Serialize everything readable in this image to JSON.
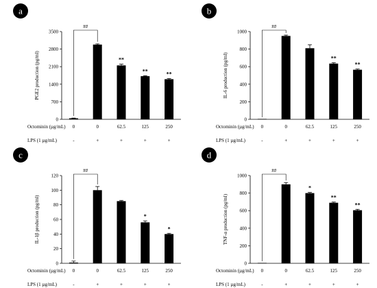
{
  "chart_data": [
    {
      "type": "bar",
      "panel_label": "a",
      "ylabel": "PGE2 production (pg/ml)",
      "ylim": [
        0,
        3500
      ],
      "yticks": [
        0,
        700,
        1400,
        2100,
        2800,
        3500
      ],
      "categories": [
        "0",
        "0",
        "62.5",
        "125",
        "250"
      ],
      "values": [
        40,
        2980,
        2150,
        1720,
        1600
      ],
      "errors": [
        10,
        30,
        50,
        20,
        25
      ],
      "significance": [
        "",
        "",
        "**",
        "**",
        "**"
      ],
      "comparison_label": "##",
      "treatment_label": "Octominin (µg/mL)",
      "lps_label": "LPS (1 µg/mL)",
      "lps": [
        "-",
        "+",
        "+",
        "+",
        "+"
      ],
      "grid": false
    },
    {
      "type": "bar",
      "panel_label": "b",
      "ylabel": "IL-6 production (pg/ml)",
      "ylim": [
        0,
        1000
      ],
      "yticks": [
        0,
        200,
        400,
        600,
        800,
        1000
      ],
      "categories": [
        "0",
        "0",
        "62.5",
        "125",
        "250"
      ],
      "values": [
        0,
        950,
        810,
        635,
        565
      ],
      "errors": [
        0,
        10,
        40,
        10,
        8
      ],
      "significance": [
        "",
        "",
        "",
        "**",
        "**"
      ],
      "comparison_label": "##",
      "treatment_label": "Octominin (µg/mL)",
      "lps_label": "LPS (1 µg/mL)",
      "lps": [
        "-",
        "+",
        "+",
        "+",
        "+"
      ],
      "grid": false
    },
    {
      "type": "bar",
      "panel_label": "c",
      "ylabel": "IL-1β production (pg/ml)",
      "ylim": [
        0,
        120
      ],
      "yticks": [
        0,
        20,
        40,
        60,
        80,
        100,
        120
      ],
      "categories": [
        "0",
        "0",
        "62.5",
        "125",
        "250"
      ],
      "values": [
        1,
        100,
        85,
        56,
        40
      ],
      "errors": [
        2,
        5,
        1,
        2,
        1
      ],
      "significance": [
        "",
        "",
        "",
        "*",
        "*"
      ],
      "comparison_label": "##",
      "treatment_label": "Octominin (µg/mL)",
      "lps_label": "LPS (1 µg/mL)",
      "lps": [
        "-",
        "+",
        "+",
        "+",
        "+"
      ],
      "grid": false
    },
    {
      "type": "bar",
      "panel_label": "d",
      "ylabel": "TNF-α production (pg/ml)",
      "ylim": [
        0,
        1000
      ],
      "yticks": [
        0,
        200,
        400,
        600,
        800,
        1000
      ],
      "categories": [
        "0",
        "0",
        "62.5",
        "125",
        "250"
      ],
      "values": [
        0,
        900,
        800,
        690,
        605
      ],
      "errors": [
        0,
        20,
        8,
        8,
        10
      ],
      "significance": [
        "",
        "",
        "*",
        "**",
        "**"
      ],
      "comparison_label": "##",
      "treatment_label": "Octominin (µg/mL)",
      "lps_label": "LPS (1 µg/mL)",
      "lps": [
        "-",
        "+",
        "+",
        "+",
        "+"
      ],
      "grid": false
    }
  ],
  "colors": {
    "bar": "#000000",
    "badge": "#000000",
    "axis": "#000000"
  }
}
